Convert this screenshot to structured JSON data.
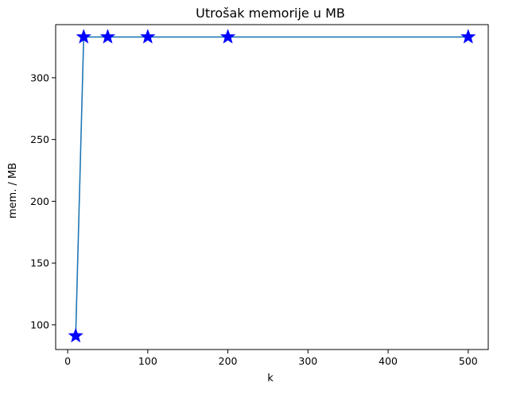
{
  "chart_data": {
    "type": "line",
    "title": "Utrošak memorije u MB",
    "xlabel": "k",
    "ylabel": "mem. / MB",
    "xlim": [
      -15,
      525
    ],
    "ylim": [
      80,
      343
    ],
    "xticks": [
      0,
      100,
      200,
      300,
      400,
      500
    ],
    "yticks": [
      100,
      150,
      200,
      250,
      300
    ],
    "grid": false,
    "series": [
      {
        "x": [
          10,
          20,
          50,
          100,
          200,
          500
        ],
        "y": [
          91,
          333,
          333,
          333,
          333,
          333
        ],
        "line_color": "#1f77b4",
        "marker": "star",
        "marker_color": "#0000ff"
      }
    ]
  }
}
